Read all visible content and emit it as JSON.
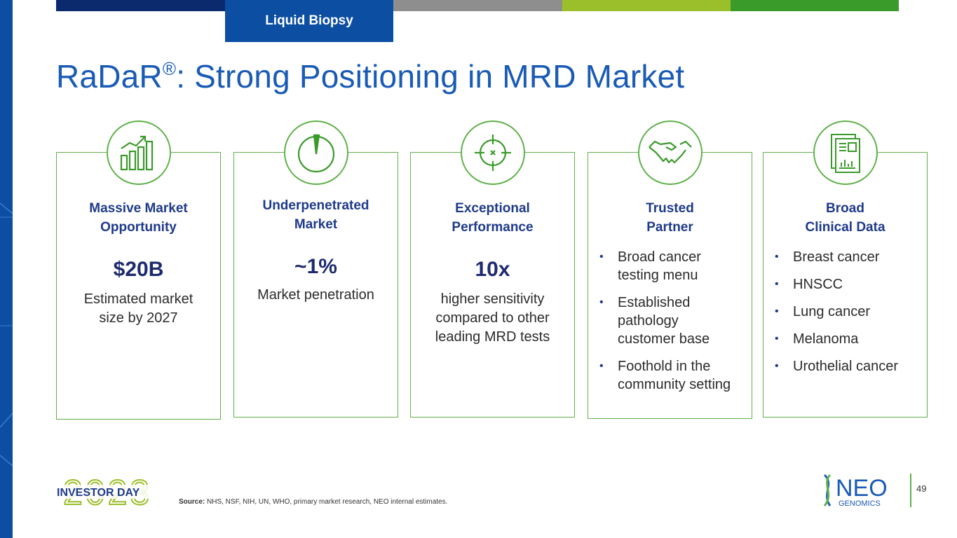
{
  "header": {
    "tab_label": "Liquid Biopsy",
    "title_main": "RaDaR",
    "title_mark": "®",
    "title_rest": ": Strong Positioning in MRD Market"
  },
  "colors": {
    "navy": "#0b4ea2",
    "blue": "#1a5bb5",
    "gray": "#8e8e8e",
    "lime": "#9bbf2a",
    "green": "#3a9a2a",
    "border_green": "#5fb14a"
  },
  "cards": [
    {
      "icon": "growth-chart-icon",
      "heading_line1": "Massive Market",
      "heading_line2": "Opportunity",
      "value": "$20B",
      "desc_line1": "Estimated market",
      "desc_line2": "size by 2027"
    },
    {
      "icon": "pie-slice-icon",
      "heading_line1": "Underpenetrated",
      "heading_line2": "Market",
      "value": "~1%",
      "desc_line1": "Market penetration"
    },
    {
      "icon": "crosshair-target-icon",
      "heading_line1": "Exceptional",
      "heading_line2": "Performance",
      "value": "10x",
      "desc_line1": "higher sensitivity",
      "desc_line2": "compared to other",
      "desc_line3": "leading MRD tests"
    },
    {
      "icon": "handshake-icon",
      "heading_line1": "Trusted",
      "heading_line2": "Partner",
      "bullets": [
        {
          "l1": "Broad cancer",
          "l2": "testing menu"
        },
        {
          "l1": "Established",
          "l2": "pathology",
          "l3": "customer base"
        },
        {
          "l1": "Foothold in the",
          "l2": "community setting"
        }
      ]
    },
    {
      "icon": "document-report-icon",
      "heading_line1": "Broad",
      "heading_line2": "Clinical Data",
      "bullets": [
        "Breast cancer",
        "HNSCC",
        "Lung cancer",
        "Melanoma",
        "Urothelial cancer"
      ]
    }
  ],
  "footer": {
    "event_year": "2023",
    "event_name": "INVESTOR DAY",
    "source_label": "Source:",
    "source_text": " NHS, NSF, NIH, UN, WHO, primary market research, NEO internal estimates.",
    "company_name": "NEO",
    "company_sub": "GENOMICS",
    "page_number": "49"
  }
}
